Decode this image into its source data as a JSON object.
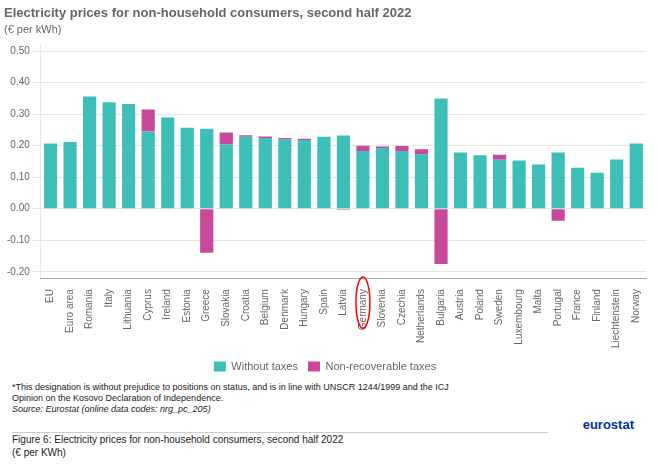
{
  "chart_data": {
    "type": "bar",
    "title": "Electricity prices for non-household consumers, second half 2022",
    "subtitle": "(€ per kWh)",
    "categories": [
      "EU",
      "Euro area",
      "Romania",
      "Italy",
      "Lithuania",
      "Cyprus",
      "Ireland",
      "Estonia",
      "Greece",
      "Slovakia",
      "Croatia",
      "Belgium",
      "Denmark",
      "Hungary",
      "Spain",
      "Latvia",
      "Germany",
      "Slovenia",
      "Czechia",
      "Netherlands",
      "Bulgaria",
      "Austria",
      "Poland",
      "Sweden",
      "Luxembourg",
      "Malta",
      "Portugal",
      "France",
      "Finland",
      "Liechtenstein",
      "Norway"
    ],
    "series": [
      {
        "name": "Without taxes",
        "color": "#3DBFB8",
        "values": [
          0.207,
          0.212,
          0.356,
          0.338,
          0.332,
          0.245,
          0.289,
          0.257,
          0.254,
          0.204,
          0.228,
          0.224,
          0.22,
          0.218,
          0.228,
          0.232,
          0.183,
          0.193,
          0.183,
          0.173,
          0.35,
          0.178,
          0.17,
          0.155,
          0.153,
          0.14,
          0.178,
          0.13,
          0.114,
          0.156,
          0.207
        ]
      },
      {
        "name": "Non-recoverable taxes",
        "color": "#C8489A",
        "values": [
          0.0,
          0.0,
          0.0,
          0.0,
          0.0,
          0.07,
          0.0,
          0.0,
          -0.14,
          0.038,
          0.005,
          0.005,
          0.004,
          0.004,
          0.0,
          -0.003,
          0.017,
          0.004,
          0.016,
          0.016,
          -0.175,
          0.0,
          0.0,
          0.016,
          0.0,
          0.0,
          -0.038,
          0.0,
          0.0,
          0.0,
          0.0
        ]
      }
    ],
    "stacked": true,
    "ylim": [
      -0.22,
      0.52
    ],
    "yticks": [
      {
        "value": -0.2,
        "label": "-0.20"
      },
      {
        "value": -0.1,
        "label": "-0.10"
      },
      {
        "value": 0,
        "label": "0.00"
      },
      {
        "value": 0.1,
        "label": "0.10"
      },
      {
        "value": 0.2,
        "label": "0.20"
      },
      {
        "value": 0.3,
        "label": "0.30"
      },
      {
        "value": 0.4,
        "label": "0.40"
      },
      {
        "value": 0.5,
        "label": "0.50"
      }
    ],
    "grid": true,
    "legend": "bottom",
    "annotations": [
      {
        "category": "Germany",
        "shape": "ellipse",
        "color": "red"
      },
      {
        "text": "*This designation is without prejudice to positions on status, and is in line with UNSCR 1244/1999 and the ICJ"
      },
      {
        "text": "Opinion on the Kosovo Declaration of Independence."
      },
      {
        "text": "Source: Eurostat (online data codes: nrg_pc_205)"
      },
      {
        "text": "eurostat",
        "color": "#003399"
      },
      {
        "text": "Figure 6: Electricity prices for non-household consumers, second half 2022"
      },
      {
        "text": "(€ per KWh)"
      }
    ]
  }
}
